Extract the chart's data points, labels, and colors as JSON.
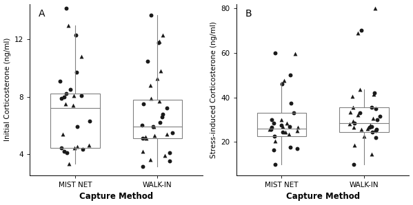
{
  "panel_A": {
    "label": "A",
    "ylabel": "Initial Corticosterone (ng/ml)",
    "xlabel": "Capture Method",
    "ylim": [
      2.5,
      14.5
    ],
    "yticks": [
      4,
      8,
      12
    ],
    "xtick_labels": [
      "MIST NET",
      "WALK-IN"
    ],
    "mist_net_circles": [
      14.2,
      12.3,
      9.7,
      9.1,
      8.5,
      8.2,
      8.1,
      8.0,
      7.9,
      6.3,
      5.9,
      4.4,
      4.3,
      4.2,
      4.1
    ],
    "mist_net_triangles": [
      13.0,
      10.8,
      8.1,
      7.5,
      7.4,
      5.4,
      4.6,
      4.5,
      4.4,
      3.3
    ],
    "walk_in_circles": [
      13.7,
      11.8,
      10.5,
      7.5,
      7.2,
      6.8,
      6.6,
      6.2,
      6.0,
      5.9,
      5.5,
      5.1,
      4.1,
      3.5,
      3.1
    ],
    "walk_in_triangles": [
      12.3,
      11.9,
      9.8,
      9.3,
      8.8,
      7.9,
      7.7,
      5.9,
      5.4,
      5.3,
      5.2,
      5.1,
      4.2,
      3.9,
      3.6
    ],
    "mist_net_box": {
      "q1": 4.4,
      "median": 7.2,
      "q3": 8.2,
      "whisker_low": 3.3,
      "whisker_high": 13.0
    },
    "walk_in_box": {
      "q1": 5.1,
      "median": 5.9,
      "q3": 7.8,
      "whisker_low": 3.1,
      "whisker_high": 13.7
    }
  },
  "panel_B": {
    "label": "B",
    "ylabel": "Stress-induced Corticosterone (ng/ml)",
    "xlabel": "Capture Method",
    "ylim": [
      5,
      82
    ],
    "yticks": [
      20,
      40,
      60,
      80
    ],
    "xtick_labels": [
      "MIST NET",
      "WALK-IN"
    ],
    "mist_net_circles": [
      60.0,
      46.0,
      50.0,
      37.5,
      33.0,
      30.0,
      28.5,
      27.5,
      27.0,
      26.5,
      25.5,
      24.5,
      22.5,
      17.5,
      16.5,
      10.0,
      17.0
    ],
    "mist_net_triangles": [
      59.5,
      47.5,
      30.0,
      28.5,
      27.0,
      26.5,
      25.5,
      25.0,
      24.5,
      23.5,
      20.5
    ],
    "walk_in_circles": [
      70.0,
      42.0,
      35.5,
      35.0,
      33.0,
      31.5,
      30.0,
      28.5,
      27.0,
      26.5,
      25.5,
      25.0,
      24.5,
      22.0,
      10.0
    ],
    "walk_in_triangles": [
      69.0,
      43.5,
      41.5,
      40.5,
      35.5,
      33.5,
      32.0,
      30.5,
      29.5,
      28.0,
      27.5,
      26.5,
      26.0,
      25.5,
      22.5,
      18.5,
      14.5,
      80.0
    ],
    "mist_net_box": {
      "q1": 22.5,
      "median": 26.0,
      "q3": 33.0,
      "whisker_low": 10.0,
      "whisker_high": 47.0
    },
    "walk_in_box": {
      "q1": 24.5,
      "median": 28.5,
      "q3": 35.5,
      "whisker_low": 10.0,
      "whisker_high": 43.5
    }
  },
  "box_color": "#808080",
  "dot_color": "#1a1a1a",
  "jitter_seed": 15,
  "marker_size": 18,
  "box_width": 0.6,
  "bg_color": "#ffffff",
  "figsize": [
    5.99,
    2.98
  ],
  "dpi": 100
}
